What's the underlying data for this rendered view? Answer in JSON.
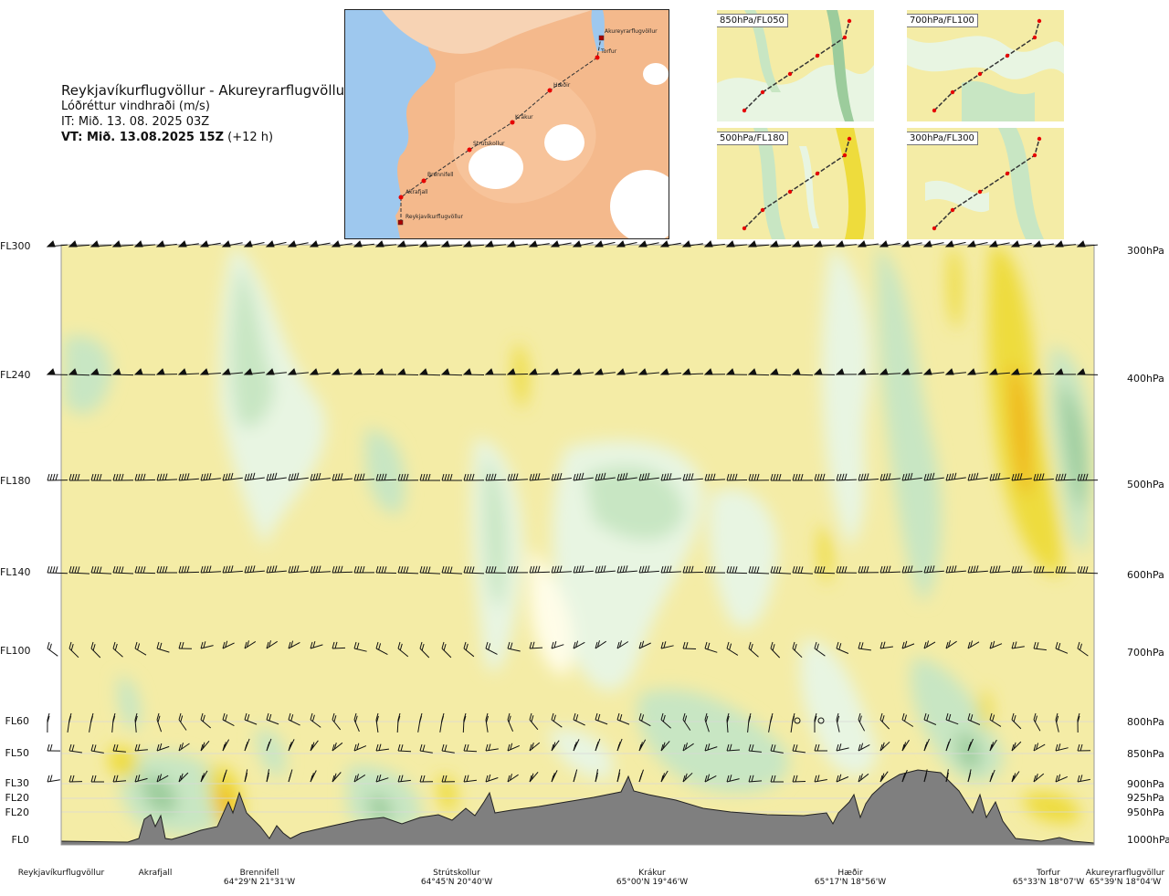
{
  "header": {
    "route": "Reykjavíkurflugvöllur - Akureyrarflugvöllur",
    "parameter": "Lóðréttur vindhraði (m/s)",
    "issue_time": "IT: Mið. 13. 08. 2025 03Z",
    "valid_time": "VT: Mið. 13.08.2025 15Z",
    "lead": "(+12 h)"
  },
  "route_map": {
    "waypoints": [
      "Akureyrarflugvöllur",
      "Torfur",
      "Hæðir",
      "Krákur",
      "Strútskollur",
      "Brennifell",
      "Akrafjall",
      "Reykjavíkurflugvöllur"
    ],
    "colors": {
      "sea": "#9ec8ee",
      "land": "#f4b98c",
      "ice": "#ffffff",
      "route": "#333333",
      "point": "#e60000"
    }
  },
  "level_maps": [
    {
      "label": "850hPa/FL050"
    },
    {
      "label": "700hPa/FL100"
    },
    {
      "label": "500hPa/FL180"
    },
    {
      "label": "300hPa/FL300"
    }
  ],
  "chart_data": {
    "type": "heatmap",
    "title": "Lóðréttur vindhraði (m/s)",
    "levels": [
      {
        "fl": "FL300",
        "hpa": "300hPa"
      },
      {
        "fl": "FL240",
        "hpa": "400hPa"
      },
      {
        "fl": "FL180",
        "hpa": "500hPa"
      },
      {
        "fl": "FL140",
        "hpa": "600hPa"
      },
      {
        "fl": "FL100",
        "hpa": "700hPa"
      },
      {
        "fl": "FL60",
        "hpa": "800hPa"
      },
      {
        "fl": "FL50",
        "hpa": "850hPa"
      },
      {
        "fl": "FL30",
        "hpa": "900hPa"
      },
      {
        "fl": "FL20",
        "hpa": "925hPa"
      },
      {
        "fl": "FL20",
        "hpa": "950hPa"
      },
      {
        "fl": "FL0",
        "hpa": "1000hPa"
      }
    ],
    "locations": [
      {
        "name": "Reykjavíkurflugvöllur",
        "coord": ""
      },
      {
        "name": "Akrafjall",
        "coord": ""
      },
      {
        "name": "Brennifell",
        "coord": "64°29'N 21°31'W"
      },
      {
        "name": "Strútskollur",
        "coord": "64°45'N 20°40'W"
      },
      {
        "name": "Krákur",
        "coord": "65°00'N 19°46'W"
      },
      {
        "name": "Hæðir",
        "coord": "65°17'N 18°56'W"
      },
      {
        "name": "Torfur",
        "coord": "65°33'N 18°07'W"
      },
      {
        "name": "Akureyrarflugvöllur",
        "coord": "65°39'N 18°04'W"
      }
    ],
    "colors": {
      "background": "#f4eca6",
      "weak_up": "#e8f5e2",
      "up": "#c8e6c3",
      "strong_up": "#9ccc9c",
      "down": "#eedc3c",
      "strong_down": "#f0b418",
      "terrain": "#7f7f7f"
    }
  }
}
